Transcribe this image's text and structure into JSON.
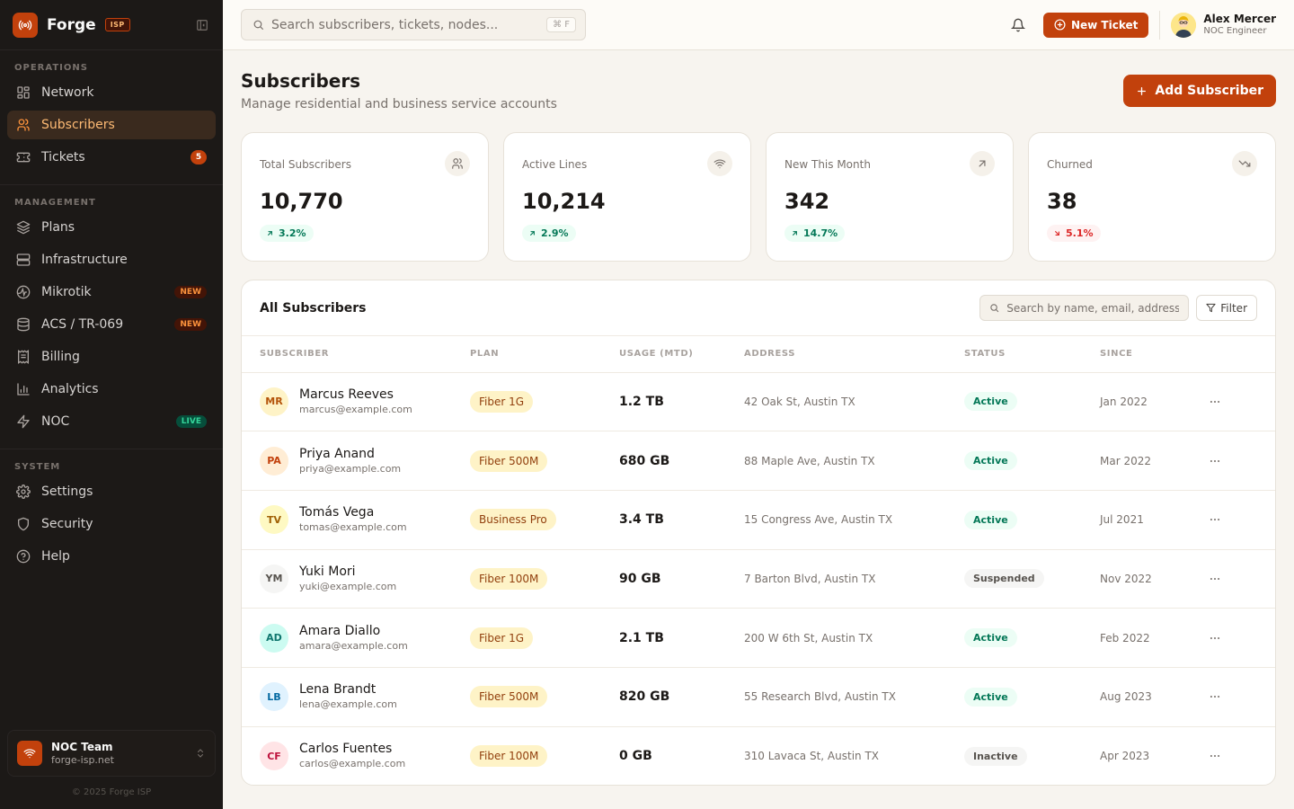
{
  "brand": {
    "name": "Forge",
    "tag": "ISP"
  },
  "sidebar": {
    "sections": [
      {
        "title": "OPERATIONS",
        "items": [
          {
            "label": "Network",
            "icon": "grid-icon"
          },
          {
            "label": "Subscribers",
            "icon": "users-icon",
            "active": true
          },
          {
            "label": "Tickets",
            "icon": "ticket-icon",
            "badge": "5"
          }
        ]
      },
      {
        "title": "MANAGEMENT",
        "items": [
          {
            "label": "Plans",
            "icon": "layers-icon"
          },
          {
            "label": "Infrastructure",
            "icon": "server-icon"
          },
          {
            "label": "Mikrotik",
            "icon": "router-icon",
            "badge": "NEW"
          },
          {
            "label": "ACS / TR-069",
            "icon": "database-icon",
            "badge": "NEW"
          },
          {
            "label": "Billing",
            "icon": "receipt-icon"
          },
          {
            "label": "Analytics",
            "icon": "bar-chart-icon"
          },
          {
            "label": "NOC",
            "icon": "zap-icon",
            "badge": "LIVE"
          }
        ]
      },
      {
        "title": "SYSTEM",
        "items": [
          {
            "label": "Settings",
            "icon": "gear-icon"
          },
          {
            "label": "Security",
            "icon": "shield-icon"
          },
          {
            "label": "Help",
            "icon": "help-circle-icon"
          }
        ]
      }
    ],
    "team": {
      "name": "NOC Team",
      "domain": "forge-isp.net"
    },
    "copyright": "© 2025 Forge ISP"
  },
  "topbar": {
    "search_placeholder": "Search subscribers, tickets, nodes...",
    "shortcut": "⌘ F",
    "new_ticket_label": "New Ticket",
    "user": {
      "name": "Alex Mercer",
      "role": "NOC Engineer"
    }
  },
  "page": {
    "title": "Subscribers",
    "subtitle": "Manage residential and business service accounts",
    "add_label": "Add Subscriber"
  },
  "stats": [
    {
      "label": "Total Subscribers",
      "value": "10,770",
      "delta": "3.2%",
      "trend": "up",
      "icon": "users-icon"
    },
    {
      "label": "Active Lines",
      "value": "10,214",
      "delta": "2.9%",
      "trend": "up",
      "icon": "wifi-icon"
    },
    {
      "label": "New This Month",
      "value": "342",
      "delta": "14.7%",
      "trend": "up",
      "icon": "arrow-up-right-icon"
    },
    {
      "label": "Churned",
      "value": "38",
      "delta": "5.1%",
      "trend": "down",
      "icon": "trending-down-icon"
    }
  ],
  "table": {
    "title": "All Subscribers",
    "search_placeholder": "Search by name, email, address...",
    "filter_label": "Filter",
    "columns": [
      "SUBSCRIBER",
      "PLAN",
      "USAGE (MTD)",
      "ADDRESS",
      "STATUS",
      "SINCE"
    ],
    "rows": [
      {
        "initials": "MR",
        "name": "Marcus Reeves",
        "email": "marcus@example.com",
        "plan": "Fiber 1G",
        "usage": "1.2 TB",
        "address": "42 Oak St, Austin TX",
        "status": "Active",
        "since": "Jan 2022",
        "avatar_bg": "#fef3c7",
        "avatar_fg": "#b45309"
      },
      {
        "initials": "PA",
        "name": "Priya Anand",
        "email": "priya@example.com",
        "plan": "Fiber 500M",
        "usage": "680 GB",
        "address": "88 Maple Ave, Austin TX",
        "status": "Active",
        "since": "Mar 2022",
        "avatar_bg": "#ffedd5",
        "avatar_fg": "#c2410c"
      },
      {
        "initials": "TV",
        "name": "Tomás Vega",
        "email": "tomas@example.com",
        "plan": "Business Pro",
        "usage": "3.4 TB",
        "address": "15 Congress Ave, Austin TX",
        "status": "Active",
        "since": "Jul 2021",
        "avatar_bg": "#fef9c3",
        "avatar_fg": "#a16207"
      },
      {
        "initials": "YM",
        "name": "Yuki Mori",
        "email": "yuki@example.com",
        "plan": "Fiber 100M",
        "usage": "90 GB",
        "address": "7 Barton Blvd, Austin TX",
        "status": "Suspended",
        "since": "Nov 2022",
        "avatar_bg": "#f5f5f4",
        "avatar_fg": "#57534e"
      },
      {
        "initials": "AD",
        "name": "Amara Diallo",
        "email": "amara@example.com",
        "plan": "Fiber 1G",
        "usage": "2.1 TB",
        "address": "200 W 6th St, Austin TX",
        "status": "Active",
        "since": "Feb 2022",
        "avatar_bg": "#ccfbf1",
        "avatar_fg": "#0f766e"
      },
      {
        "initials": "LB",
        "name": "Lena Brandt",
        "email": "lena@example.com",
        "plan": "Fiber 500M",
        "usage": "820 GB",
        "address": "55 Research Blvd, Austin TX",
        "status": "Active",
        "since": "Aug 2023",
        "avatar_bg": "#e0f2fe",
        "avatar_fg": "#0369a1"
      },
      {
        "initials": "CF",
        "name": "Carlos Fuentes",
        "email": "carlos@example.com",
        "plan": "Fiber 100M",
        "usage": "0 GB",
        "address": "310 Lavaca St, Austin TX",
        "status": "Inactive",
        "since": "Apr 2023",
        "avatar_bg": "#ffe4e6",
        "avatar_fg": "#be123c"
      }
    ]
  },
  "colors": {
    "accent": "#c2410c",
    "sidebar_bg": "#1c1917",
    "page_bg": "#f7f4ef",
    "positive": "#047857",
    "negative": "#dc2626"
  }
}
